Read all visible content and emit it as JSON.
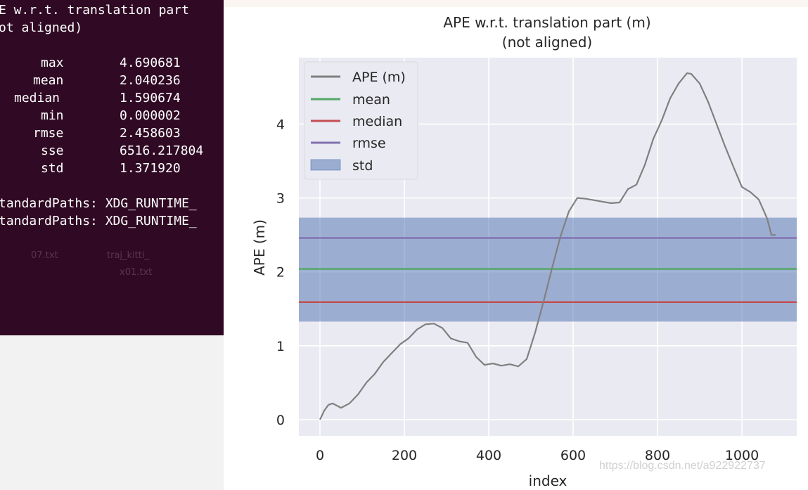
{
  "terminal": {
    "heading": [
      "E w.r.t. translation part",
      "ot aligned)"
    ],
    "stats": [
      {
        "label": "max",
        "value": "4.690681"
      },
      {
        "label": "mean",
        "value": "2.040236"
      },
      {
        "label": "median",
        "value": "1.590674"
      },
      {
        "label": "min",
        "value": "0.000002"
      },
      {
        "label": "rmse",
        "value": "2.458603"
      },
      {
        "label": "sse",
        "value": "6516.217804"
      },
      {
        "label": "std",
        "value": "1.371920"
      }
    ],
    "warnings": [
      "tandardPaths: XDG_RUNTIME_",
      "tandardPaths: XDG_RUNTIME_"
    ],
    "desktop_files": [
      "07.txt",
      "traj_kitti_",
      "x01.txt"
    ],
    "colors": {
      "background": "#300a24",
      "text": "#ffffff"
    }
  },
  "plot": {
    "title": "APE w.r.t. translation part (m)",
    "subtitle": "(not aligned)",
    "xlabel": "index",
    "ylabel": "APE (m)",
    "legend": [
      "APE (m)",
      "mean",
      "median",
      "rmse",
      "std"
    ],
    "watermark": "https://blog.csdn.net/a922922737"
  },
  "chart_data": {
    "type": "line",
    "title": "APE w.r.t. translation part (m)\n(not aligned)",
    "xlabel": "index",
    "ylabel": "APE (m)",
    "xlim": [
      -50,
      1130
    ],
    "ylim": [
      -0.22,
      4.9
    ],
    "xticks": [
      0,
      200,
      400,
      600,
      800,
      1000
    ],
    "yticks": [
      0,
      1,
      2,
      3,
      4
    ],
    "grid": true,
    "legend_position": "top-left",
    "series": [
      {
        "name": "APE (m)",
        "color": "#808080",
        "x": [
          0,
          10,
          20,
          30,
          50,
          70,
          90,
          110,
          130,
          150,
          170,
          190,
          210,
          230,
          250,
          270,
          290,
          310,
          330,
          350,
          370,
          390,
          410,
          430,
          450,
          470,
          490,
          510,
          530,
          550,
          570,
          590,
          610,
          630,
          650,
          670,
          690,
          710,
          730,
          750,
          770,
          790,
          810,
          830,
          850,
          870,
          880,
          900,
          920,
          940,
          960,
          980,
          1000,
          1020,
          1040,
          1060,
          1070,
          1080
        ],
        "y": [
          0.0,
          0.12,
          0.2,
          0.22,
          0.16,
          0.22,
          0.34,
          0.5,
          0.62,
          0.78,
          0.9,
          1.02,
          1.1,
          1.22,
          1.29,
          1.3,
          1.24,
          1.1,
          1.06,
          1.04,
          0.85,
          0.74,
          0.76,
          0.73,
          0.75,
          0.72,
          0.82,
          1.18,
          1.6,
          2.05,
          2.48,
          2.82,
          3.0,
          2.99,
          2.97,
          2.95,
          2.93,
          2.94,
          3.12,
          3.18,
          3.45,
          3.8,
          4.05,
          4.35,
          4.55,
          4.69,
          4.68,
          4.55,
          4.3,
          4.0,
          3.7,
          3.42,
          3.15,
          3.08,
          2.98,
          2.72,
          2.5,
          2.5
        ]
      }
    ],
    "hlines": [
      {
        "name": "mean",
        "y": 2.040236,
        "color": "#55a868"
      },
      {
        "name": "median",
        "y": 1.590674,
        "color": "#c44e52"
      },
      {
        "name": "rmse",
        "y": 2.458603,
        "color": "#8172b2"
      }
    ],
    "band": {
      "name": "std",
      "y_low": 1.327,
      "y_high": 2.734,
      "color": "#4c72b0",
      "alpha": 0.5
    }
  }
}
